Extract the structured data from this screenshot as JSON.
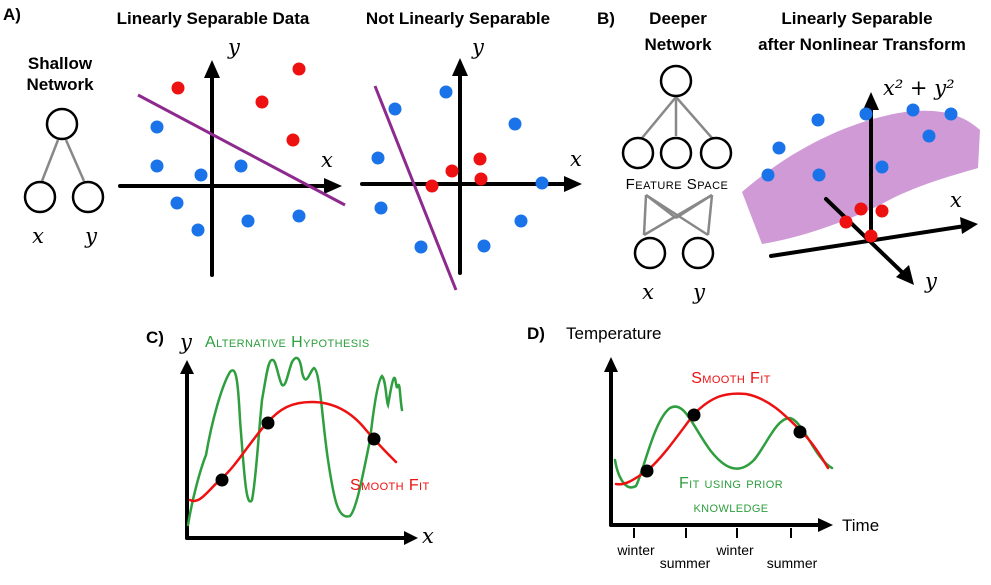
{
  "colors": {
    "red": "#ee1111",
    "blue": "#1a73e8",
    "purple": "#8e2a8e",
    "green": "#2e9e3e",
    "band": "#cf9ad6"
  },
  "panel_a": {
    "label": "A)",
    "network_title_1": "Shallow",
    "network_title_2": "Network",
    "input_x": "x",
    "input_y": "y",
    "linear_title": "Linearly Separable Data",
    "nonlinear_title": "Not Linearly Separable",
    "axis_x": "x",
    "axis_y": "y"
  },
  "panel_b": {
    "label": "B)",
    "network_title_1": "Deeper",
    "network_title_2": "Network",
    "feature_space_label": "Feature Space",
    "input_x": "x",
    "input_y": "y",
    "transform_title_1": "Linearly Separable",
    "transform_title_2": "after Nonlinear Transform",
    "axis_z": "x² + y²",
    "axis_x": "x",
    "axis_y": "y"
  },
  "panel_c": {
    "label": "C)",
    "axis_y": "y",
    "axis_x": "x",
    "alt_label": "Alternative Hypothesis",
    "smooth_label": "Smooth Fit"
  },
  "panel_d": {
    "label": "D)",
    "ylabel": "Temperature",
    "xlabel": "Time",
    "smooth_label": "Smooth Fit",
    "prior_label_1": "Fit using prior",
    "prior_label_2": "knowledge",
    "ticks": [
      "winter",
      "summer",
      "winter",
      "summer"
    ]
  }
}
